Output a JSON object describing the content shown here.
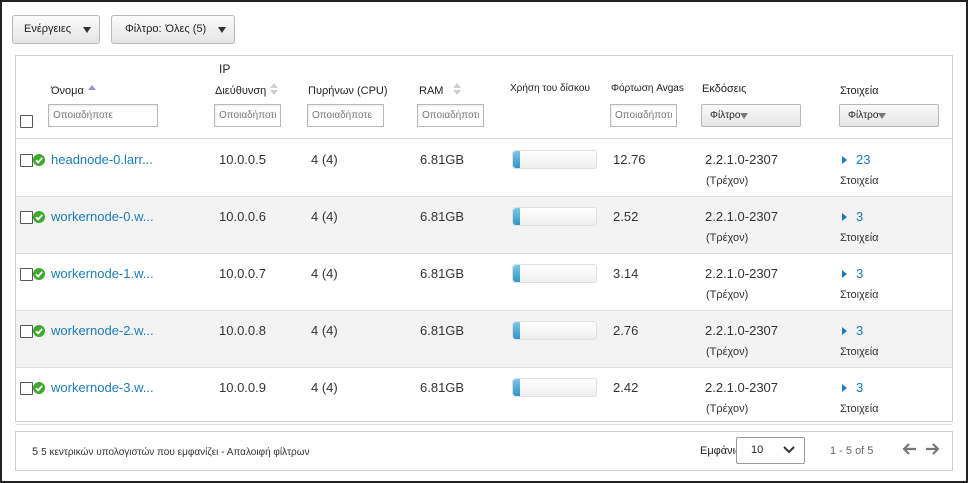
{
  "toolbar": {
    "actions_label": "Ενέργειες",
    "filter_label": "Φίλτρο:",
    "filter_value": "Όλες (5)"
  },
  "columns": {
    "name": "Όνομα",
    "ip_top": "IP",
    "ip": "Διεύθυνση",
    "cores": "Πυρήνων (CPU)",
    "ram": "RAM",
    "disk": "Χρήση του δίσκου",
    "load": "Φόρτωση Avgas",
    "versions": "Εκδόσεις",
    "components": "Στοιχεία"
  },
  "filters": {
    "name_placeholder": "Οποιαδήποτε",
    "ip_placeholder": "Οποιαδήποτε",
    "cores_placeholder": "Οποιαδήποτε",
    "ram_placeholder": "Οποιαδήποτε",
    "load_placeholder": "Οποιαδήποτε",
    "versions_filter": "Φίλτρο",
    "components_filter": "Φίλτρο"
  },
  "hosts": [
    {
      "name": "headnode-0.larr...",
      "ip": "10.0.0.5",
      "cores": "4 (4)",
      "ram": "6.81GB",
      "disk_usage": 0.08,
      "load": "12.76",
      "version": "2.2.1.0-2307",
      "version_state": "(Τρέχον)",
      "components_count": "23",
      "components_label": "Στοιχεία"
    },
    {
      "name": "workernode-0.w...",
      "ip": "10.0.0.6",
      "cores": "4 (4)",
      "ram": "6.81GB",
      "disk_usage": 0.08,
      "load": "2.52",
      "version": "2.2.1.0-2307",
      "version_state": "(Τρέχον)",
      "components_count": "3",
      "components_label": "Στοιχεία"
    },
    {
      "name": "workernode-1.w...",
      "ip": "10.0.0.7",
      "cores": "4 (4)",
      "ram": "6.81GB",
      "disk_usage": 0.08,
      "load": "3.14",
      "version": "2.2.1.0-2307",
      "version_state": "(Τρέχον)",
      "components_count": "3",
      "components_label": "Στοιχεία"
    },
    {
      "name": "workernode-2.w...",
      "ip": "10.0.0.8",
      "cores": "4 (4)",
      "ram": "6.81GB",
      "disk_usage": 0.08,
      "load": "2.76",
      "version": "2.2.1.0-2307",
      "version_state": "(Τρέχον)",
      "components_count": "3",
      "components_label": "Στοιχεία"
    },
    {
      "name": "workernode-3.w...",
      "ip": "10.0.0.9",
      "cores": "4 (4)",
      "ram": "6.81GB",
      "disk_usage": 0.08,
      "load": "2.42",
      "version": "2.2.1.0-2307",
      "version_state": "(Τρέχον)",
      "components_count": "3",
      "components_label": "Στοιχεία"
    }
  ],
  "footer": {
    "count_number": "5",
    "count_text": "5 κεντρικών υπολογιστών που εμφανίζει - Απαλοιφή φίλτρων",
    "show_label": "Εμφάνιση:",
    "page_size": "10",
    "range_text": "1 - 5 of 5",
    "prev_icon": "arrow-left-icon",
    "next_icon": "arrow-right-icon"
  },
  "colors": {
    "link": "#1a7cbc",
    "ok_status": "#3fa92e",
    "bar_fill": "#2f95c7"
  }
}
